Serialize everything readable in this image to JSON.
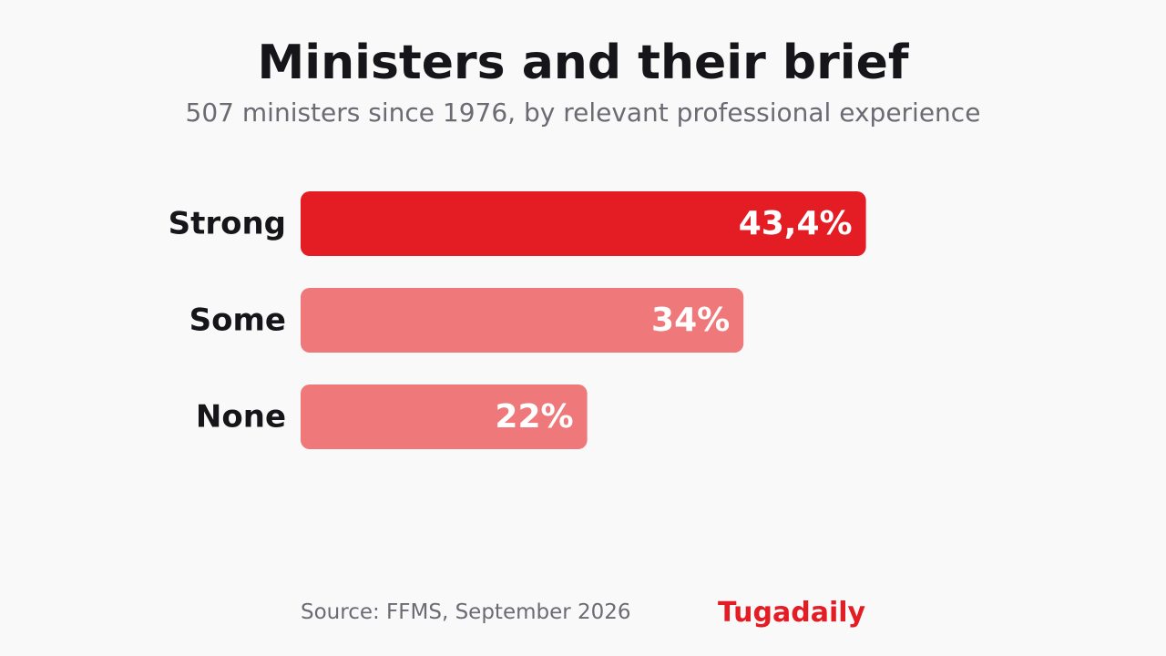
{
  "chart_data": {
    "type": "bar",
    "orientation": "horizontal",
    "title": "Ministers and their brief",
    "subtitle": "507 ministers since 1976, by relevant professional experience",
    "categories": [
      "Strong",
      "Some",
      "None"
    ],
    "values": [
      43.4,
      34,
      22
    ],
    "value_labels": [
      "43,4%",
      "34%",
      "22%"
    ],
    "xlim": [
      0,
      100
    ],
    "grid": false,
    "legend": "none",
    "colors": {
      "highlight": "#e41c24",
      "default": "#ee787a",
      "value_text": "#ffffff",
      "category_text": "#16161a"
    },
    "highlight_index": 0
  },
  "footer": {
    "source": "Source: FFMS, September 2026",
    "brand": "Tugadaily"
  }
}
